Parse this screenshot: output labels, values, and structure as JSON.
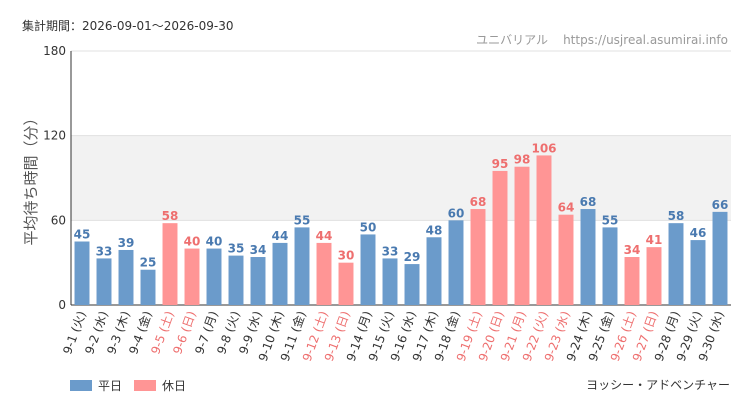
{
  "header": {
    "period": "集計期間：2026-09-01～2026-09-30",
    "site_name": "ユニバリアル",
    "site_url": "https://usjreal.asumirai.info"
  },
  "footer": {
    "attraction": "ヨッシー・アドベンチャー"
  },
  "colors": {
    "weekday": "#6b9bcb",
    "holiday": "#ff9595",
    "weekday_label": "#4a7ab0",
    "holiday_label": "#ee6f6f",
    "band": "#f2f2f2",
    "grid": "#e0e0e0"
  },
  "chart_data": {
    "type": "bar",
    "ylabel": "平均待ち時間（分）",
    "ylim": [
      0,
      180
    ],
    "yticks": [
      0,
      60,
      120,
      180
    ],
    "grid": true,
    "legend_position": "bottom-left",
    "legend": [
      {
        "key": "weekday",
        "label": "平日"
      },
      {
        "key": "holiday",
        "label": "休日"
      }
    ],
    "categories": [
      "9-1 (火)",
      "9-2 (水)",
      "9-3 (木)",
      "9-4 (金)",
      "9-5 (土)",
      "9-6 (日)",
      "9-7 (月)",
      "9-8 (火)",
      "9-9 (水)",
      "9-10 (木)",
      "9-11 (金)",
      "9-12 (土)",
      "9-13 (日)",
      "9-14 (月)",
      "9-15 (火)",
      "9-16 (水)",
      "9-17 (木)",
      "9-18 (金)",
      "9-19 (土)",
      "9-20 (日)",
      "9-21 (月)",
      "9-22 (火)",
      "9-23 (水)",
      "9-24 (木)",
      "9-25 (金)",
      "9-26 (土)",
      "9-27 (日)",
      "9-28 (月)",
      "9-29 (火)",
      "9-30 (水)"
    ],
    "values": [
      45,
      33,
      39,
      25,
      58,
      40,
      40,
      35,
      34,
      44,
      55,
      44,
      30,
      50,
      33,
      29,
      48,
      60,
      68,
      95,
      98,
      106,
      64,
      68,
      55,
      34,
      41,
      58,
      46,
      66
    ],
    "day_type": [
      "weekday",
      "weekday",
      "weekday",
      "weekday",
      "holiday",
      "holiday",
      "weekday",
      "weekday",
      "weekday",
      "weekday",
      "weekday",
      "holiday",
      "holiday",
      "weekday",
      "weekday",
      "weekday",
      "weekday",
      "weekday",
      "holiday",
      "holiday",
      "holiday",
      "holiday",
      "holiday",
      "weekday",
      "weekday",
      "holiday",
      "holiday",
      "weekday",
      "weekday",
      "weekday"
    ]
  }
}
